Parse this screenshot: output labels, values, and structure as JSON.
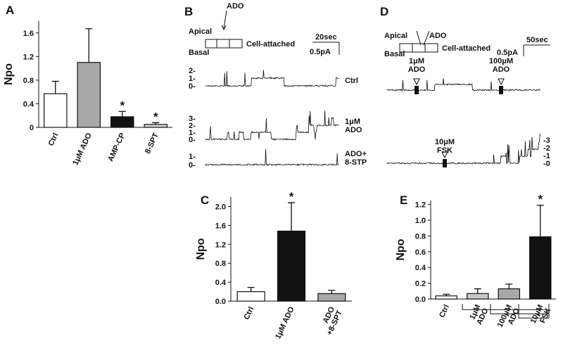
{
  "chart_data": [
    {
      "type": "bar",
      "panel": "A",
      "ylabel": "Npo",
      "categories": [
        "Ctrl",
        "1μM ADO",
        "AMP-CP",
        "8-SPT"
      ],
      "values": [
        0.57,
        1.1,
        0.18,
        0.05
      ],
      "errors": [
        0.21,
        0.57,
        0.09,
        0.03
      ],
      "markers": [
        null,
        null,
        "*",
        "*"
      ],
      "colors": [
        "#ffffff",
        "#a8a8a8",
        "#111111",
        "#d4d4d4"
      ],
      "ylim": [
        0,
        1.8
      ],
      "yticks": [
        0,
        0.4,
        0.8,
        1.2,
        1.6
      ]
    },
    {
      "type": "bar",
      "panel": "C",
      "ylabel": "Npo",
      "categories": [
        "Ctrl",
        "1μM ADO",
        "ADO\n+8-SPT"
      ],
      "values": [
        0.2,
        1.48,
        0.16
      ],
      "errors": [
        0.09,
        0.6,
        0.07
      ],
      "markers": [
        null,
        "*",
        null
      ],
      "colors": [
        "#ffffff",
        "#111111",
        "#a8a8a8"
      ],
      "ylim": [
        0,
        2.2
      ],
      "yticks": [
        {
          "value": 0,
          "label": "0.0"
        },
        0.4,
        0.8,
        1.2,
        1.6,
        {
          "value": 2,
          "label": "2.0"
        }
      ]
    },
    {
      "type": "bar",
      "panel": "E",
      "ylabel": "Npo",
      "categories": [
        "Ctrl",
        "1μM\nADO",
        "100μM\nADO",
        "10μM\nFSK"
      ],
      "values": [
        0.04,
        0.07,
        0.13,
        0.79
      ],
      "errors": [
        0.02,
        0.06,
        0.06,
        0.4
      ],
      "markers": [
        null,
        null,
        null,
        "*"
      ],
      "colors": [
        "#ffffff",
        "#c8c8c8",
        "#a8a8a8",
        "#111111"
      ],
      "ylim": [
        0,
        1.25
      ],
      "yticks": [
        {
          "value": 0,
          "label": "0.0"
        },
        0.2,
        0.4,
        0.6,
        0.8,
        {
          "value": 1,
          "label": "1.0"
        },
        1.2
      ]
    }
  ],
  "panel_B": {
    "label": "B",
    "stimulus": "ADO",
    "apical": "Apical",
    "basal": "Basal",
    "mode": "Cell-attached",
    "time_scale": "20sec",
    "current_scale": "0.5pA",
    "traces": [
      {
        "name": "Ctrl",
        "levels": [
          "2-",
          "1-",
          "0-"
        ]
      },
      {
        "name": "1μM\nADO",
        "levels": [
          "3-",
          "2-",
          "1-",
          "0-"
        ]
      },
      {
        "name": "ADO+\n8-STP",
        "levels": [
          "1-",
          "0-"
        ]
      }
    ]
  },
  "panel_D": {
    "label": "D",
    "stimulus": "ADO",
    "apical": "Apical",
    "basal": "Basal",
    "mode": "Cell-attached",
    "time_scale": "50sec",
    "current_scale": "0.5pA",
    "markers": [
      "1μM\nADO",
      "100μM\nADO",
      "10μM\nFSK"
    ],
    "levels": [
      "-3",
      "-2",
      "-1",
      "-0"
    ]
  }
}
